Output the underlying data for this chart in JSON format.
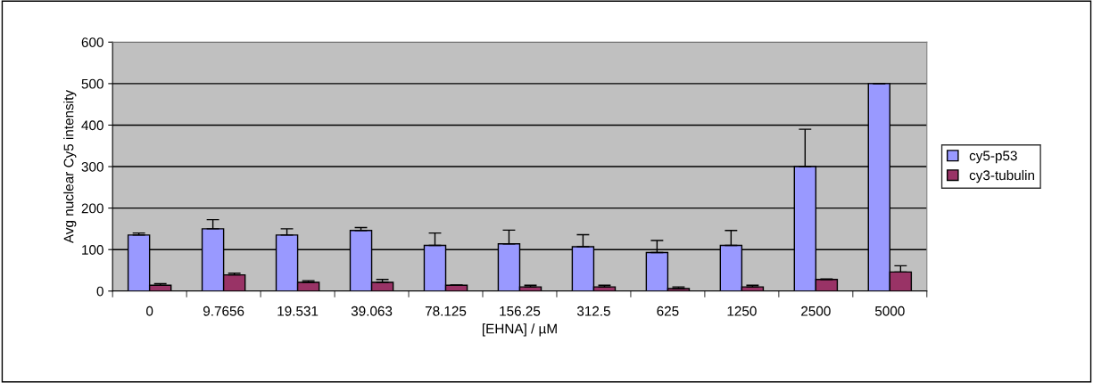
{
  "chart_data": {
    "type": "bar",
    "xlabel": "[EHNA] / µM",
    "ylabel": "Avg nuclear Cy5 intensity",
    "categories": [
      "0",
      "9.7656",
      "19.531",
      "39.063",
      "78.125",
      "156.25",
      "312.5",
      "625",
      "1250",
      "2500",
      "5000"
    ],
    "series": [
      {
        "name": "cy5-p53",
        "color": "#9999ff",
        "values": [
          135,
          150,
          135,
          146,
          110,
          114,
          107,
          93,
          110,
          300,
          500
        ],
        "errors": [
          [
            135,
            140
          ],
          [
            150,
            172
          ],
          [
            135,
            150
          ],
          [
            146,
            153
          ],
          [
            110,
            140
          ],
          [
            114,
            147
          ],
          [
            107,
            136
          ],
          [
            93,
            122
          ],
          [
            110,
            146
          ],
          [
            300,
            390
          ],
          [
            500,
            500
          ]
        ]
      },
      {
        "name": "cy3-tubulin",
        "color": "#993366",
        "values": [
          14,
          39,
          21,
          21,
          14,
          10,
          10,
          6,
          10,
          28,
          46
        ],
        "errors": [
          [
            14,
            18
          ],
          [
            39,
            43
          ],
          [
            21,
            25
          ],
          [
            21,
            28
          ],
          [
            14,
            14
          ],
          [
            10,
            14
          ],
          [
            10,
            14
          ],
          [
            6,
            10
          ],
          [
            10,
            14
          ],
          [
            28,
            29
          ],
          [
            46,
            61
          ]
        ]
      }
    ],
    "ylim": [
      0,
      600
    ],
    "yticks": [
      0,
      100,
      200,
      300,
      400,
      500,
      600
    ],
    "grid": "y",
    "legend": "right"
  }
}
